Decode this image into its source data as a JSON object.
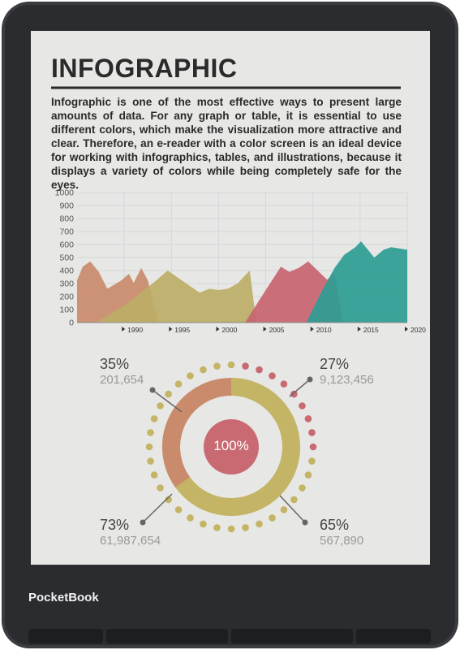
{
  "device": {
    "brand": "PocketBook"
  },
  "article": {
    "title": "INFOGRAPHIC",
    "body": "Infographic is one of the most effective ways to present large amounts of data. For any graph or table, it is essential to use different colors, which make the visualization more attractive and clear. Therefore, an e-reader with a color screen is an ideal device for working with infographics, tables, and illustrations, because it displays a variety of colors while being completely safe for the eyes."
  },
  "chart_data": {
    "type": "area",
    "xlim": [
      1985,
      2020
    ],
    "xticks": [
      1990,
      1995,
      2000,
      2005,
      2010,
      2015,
      2020
    ],
    "ylim": [
      0,
      1000
    ],
    "yticks": [
      0,
      100,
      200,
      300,
      400,
      500,
      600,
      700,
      800,
      900,
      1000
    ],
    "grid": true,
    "series": [
      {
        "color": "#c98b6c",
        "x": [
          1985,
          1985.6,
          1986.4,
          1987.3,
          1988.2,
          1988.9,
          1989.7,
          1990.5,
          1991,
          1991.8,
          1992.5,
          1993,
          1993.6
        ],
        "values": [
          325,
          430,
          470,
          390,
          260,
          290,
          325,
          375,
          305,
          420,
          325,
          170,
          0
        ]
      },
      {
        "color": "#bdae66",
        "x": [
          1987,
          1990,
          1993,
          1994.6,
          1996,
          1997,
          1998,
          1999,
          2000,
          2001,
          2002,
          2003.3,
          2004
        ],
        "values": [
          0,
          130,
          300,
          400,
          330,
          280,
          230,
          260,
          250,
          260,
          300,
          400,
          0
        ]
      },
      {
        "color": "#c86570",
        "x": [
          2002.8,
          2005,
          2006.6,
          2007.5,
          2008.5,
          2009.5,
          2010.5,
          2011.5,
          2012.3,
          2013.2
        ],
        "values": [
          0,
          250,
          430,
          390,
          420,
          470,
          400,
          330,
          380,
          0
        ]
      },
      {
        "color": "#2e9d95",
        "x": [
          2009.3,
          2011,
          2012.3,
          2013.3,
          2014.5,
          2015.1,
          2016.5,
          2017.5,
          2018.3,
          2020
        ],
        "values": [
          0,
          250,
          420,
          520,
          580,
          625,
          500,
          560,
          580,
          560
        ]
      }
    ]
  },
  "donut": {
    "center": "100%",
    "stats": [
      {
        "percent": "35%",
        "value": "201,654"
      },
      {
        "percent": "27%",
        "value": "9,123,456"
      },
      {
        "percent": "73%",
        "value": "61,987,654"
      },
      {
        "percent": "65%",
        "value": "567,890"
      }
    ]
  }
}
